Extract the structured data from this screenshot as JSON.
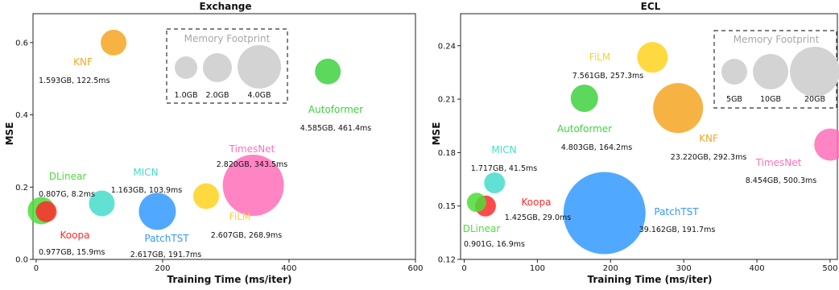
{
  "chart_data": [
    {
      "type": "scatter",
      "title": "Exchange",
      "xlabel": "Training Time (ms/iter)",
      "ylabel": "MSE",
      "xlim": [
        -5,
        600
      ],
      "ylim": [
        0.0,
        0.68
      ],
      "xticks": [
        "0",
        "200",
        "400",
        "600"
      ],
      "yticks": [
        "0.0",
        "0.2",
        "0.4",
        "0.6"
      ],
      "legend": {
        "title": "Memory Footprint",
        "placement": "top-right",
        "sizes": [
          "1.0GB",
          "2.0GB",
          "4.0GB"
        ]
      },
      "points": [
        {
          "name": "KNF",
          "stat": "1.593GB, 122.5ms",
          "x": 122.5,
          "y": 0.6,
          "color": "#f5a623"
        },
        {
          "name": "Autoformer",
          "stat": "4.585GB, 461.4ms",
          "x": 461.4,
          "y": 0.52,
          "color": "#3fd13f"
        },
        {
          "name": "TimesNet",
          "stat": "2.820GB, 343.5ms",
          "x": 343.5,
          "y": 0.205,
          "color": "#ff6fba"
        },
        {
          "name": "FiLM",
          "stat": "2.607GB, 268.9ms",
          "x": 268.9,
          "y": 0.175,
          "color": "#ffd21f"
        },
        {
          "name": "MICN",
          "stat": "1.163GB, 103.9ms",
          "x": 103.9,
          "y": 0.155,
          "color": "#45dccb"
        },
        {
          "name": "PatchTST",
          "stat": "2.617GB, 191.7ms",
          "x": 191.7,
          "y": 0.133,
          "color": "#3399ff"
        },
        {
          "name": "DLinear",
          "stat": "0.807G, 8.2ms",
          "x": 8.2,
          "y": 0.135,
          "color": "#4cdd3a"
        },
        {
          "name": "Koopa",
          "stat": "0.977GB, 15.9ms",
          "x": 15.9,
          "y": 0.132,
          "color": "#ff2a2a"
        }
      ]
    },
    {
      "type": "scatter",
      "title": "ECL",
      "xlabel": "Training Time (ms/iter)",
      "ylabel": "MSE",
      "xlim": [
        -5,
        510
      ],
      "ylim": [
        0.12,
        0.258
      ],
      "xticks": [
        "0",
        "100",
        "200",
        "300",
        "400",
        "500"
      ],
      "yticks": [
        "0.12",
        "0.15",
        "0.18",
        "0.21",
        "0.24"
      ],
      "legend": {
        "title": "Memory Footprint",
        "placement": "top-right",
        "sizes": [
          "5GB",
          "10GB",
          "20GB"
        ]
      },
      "points": [
        {
          "name": "FiLM",
          "stat": "7.561GB, 257.3ms",
          "x": 257.3,
          "y": 0.2335,
          "color": "#ffd21f"
        },
        {
          "name": "Autoformer",
          "stat": "4.803GB, 164.2ms",
          "x": 164.2,
          "y": 0.2105,
          "color": "#3fd13f"
        },
        {
          "name": "KNF",
          "stat": "23.220GB, 292.3ms",
          "x": 292.3,
          "y": 0.205,
          "color": "#f5a623"
        },
        {
          "name": "TimesNet",
          "stat": "8.454GB, 500.3ms",
          "x": 500.3,
          "y": 0.1845,
          "color": "#ff6fba"
        },
        {
          "name": "MICN",
          "stat": "1.717GB, 41.5ms",
          "x": 41.5,
          "y": 0.163,
          "color": "#45dccb"
        },
        {
          "name": "Koopa",
          "stat": "1.425GB, 29.0ms",
          "x": 29.0,
          "y": 0.15,
          "color": "#ff2a2a"
        },
        {
          "name": "PatchTST",
          "stat": "39.162GB, 191.7ms",
          "x": 191.7,
          "y": 0.146,
          "color": "#3399ff"
        },
        {
          "name": "DLinear",
          "stat": "0.901G, 16.9ms",
          "x": 16.9,
          "y": 0.152,
          "color": "#4cdd3a"
        }
      ]
    }
  ]
}
